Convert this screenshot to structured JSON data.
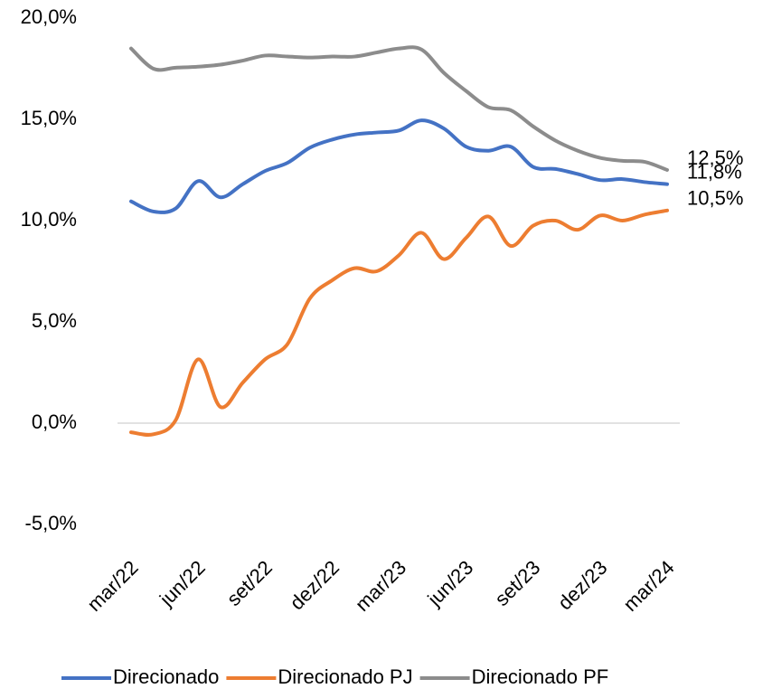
{
  "chart_data": {
    "type": "line",
    "categories": [
      "mar/22",
      null,
      null,
      "jun/22",
      null,
      null,
      "set/22",
      null,
      null,
      "dez/22",
      null,
      null,
      "mar/23",
      null,
      null,
      "jun/23",
      null,
      null,
      "set/23",
      null,
      null,
      "dez/23",
      null,
      null,
      "mar/24"
    ],
    "series": [
      {
        "name": "Direcionado",
        "color": "#4472c4",
        "values": [
          10.95,
          10.45,
          10.6,
          11.95,
          11.15,
          11.8,
          12.45,
          12.85,
          13.6,
          14.0,
          14.25,
          14.35,
          14.45,
          14.95,
          14.55,
          13.65,
          13.45,
          13.65,
          12.65,
          12.55,
          12.3,
          12.0,
          12.05,
          11.9,
          11.8
        ],
        "value_labels": [
          null,
          null,
          null,
          null,
          null,
          null,
          null,
          null,
          null,
          null,
          null,
          null,
          null,
          null,
          null,
          null,
          null,
          null,
          null,
          null,
          null,
          null,
          null,
          null,
          "11,8%"
        ]
      },
      {
        "name": "Direcionado PJ",
        "color": "#ed7d31",
        "values": [
          -0.45,
          -0.55,
          0.15,
          3.15,
          0.8,
          2.0,
          3.15,
          3.9,
          6.15,
          7.05,
          7.65,
          7.5,
          8.3,
          9.4,
          8.1,
          9.15,
          10.2,
          8.75,
          9.75,
          10.0,
          9.55,
          10.25,
          10.0,
          10.3,
          10.5
        ],
        "value_labels": [
          null,
          null,
          null,
          null,
          null,
          null,
          null,
          null,
          null,
          null,
          null,
          null,
          null,
          null,
          null,
          null,
          null,
          null,
          null,
          null,
          null,
          null,
          null,
          null,
          "10,5%"
        ]
      },
      {
        "name": "Direcionado PF",
        "color": "#8c8c8c",
        "values": [
          18.5,
          17.5,
          17.55,
          17.6,
          17.7,
          17.9,
          18.15,
          18.1,
          18.05,
          18.1,
          18.1,
          18.3,
          18.5,
          18.45,
          17.3,
          16.4,
          15.6,
          15.45,
          14.65,
          13.95,
          13.45,
          13.1,
          12.95,
          12.9,
          12.5
        ],
        "value_labels": [
          null,
          null,
          null,
          null,
          null,
          null,
          null,
          null,
          null,
          null,
          null,
          null,
          null,
          null,
          null,
          null,
          null,
          null,
          null,
          null,
          null,
          null,
          null,
          null,
          "12,5%"
        ]
      }
    ],
    "ylim": [
      -5,
      20
    ],
    "yticks": [
      {
        "value": -5,
        "label": "-5,0%"
      },
      {
        "value": 0,
        "label": "0,0%"
      },
      {
        "value": 5,
        "label": "5,0%"
      },
      {
        "value": 10,
        "label": "10,0%"
      },
      {
        "value": 15,
        "label": "15,0%"
      },
      {
        "value": 20,
        "label": "20,0%"
      }
    ],
    "legend": "bottom"
  }
}
